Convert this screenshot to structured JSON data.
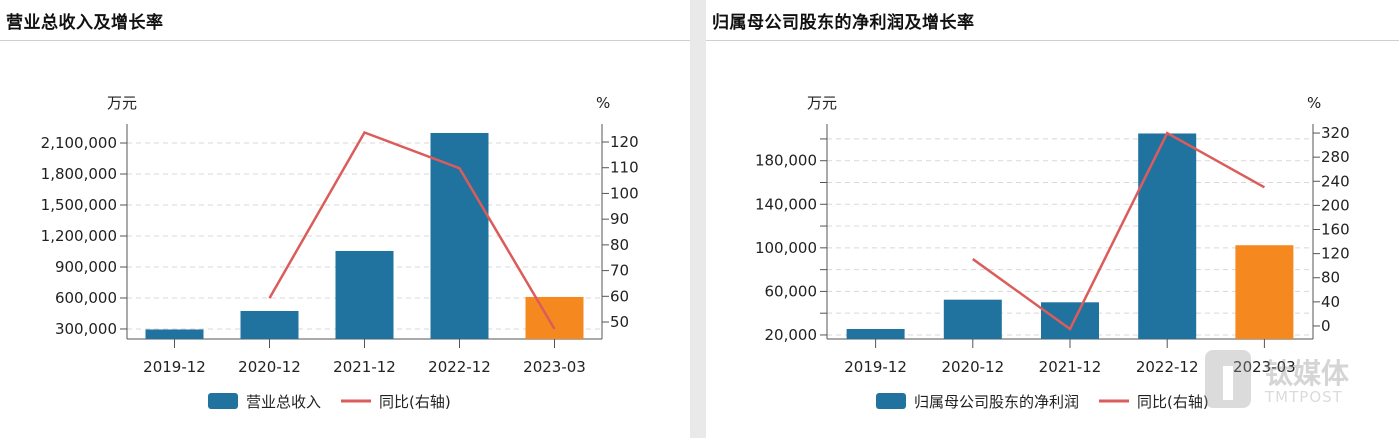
{
  "colors": {
    "bar": "#21739f",
    "bar_highlight": "#f5891f",
    "line": "#dc5b5b",
    "grid": "#d8d8d8",
    "axis": "#555555"
  },
  "watermark": {
    "cn": "钛媒体",
    "en": "TMTPOST"
  },
  "chart_data": [
    {
      "type": "bar+line",
      "title": "营业总收入及增长率",
      "categories": [
        "2019-12",
        "2020-12",
        "2021-12",
        "2022-12",
        "2023-03"
      ],
      "left_axis": {
        "unit": "万元",
        "range": [
          203000,
          2284000
        ],
        "ticks": [
          300000,
          600000,
          900000,
          1200000,
          1500000,
          1800000,
          2100000
        ],
        "tick_labels": [
          "300,000",
          "600,000",
          "900,000",
          "1,200,000",
          "1,500,000",
          "1,800,000",
          "2,100,000"
        ],
        "grid_ticks": [
          300000,
          600000,
          900000,
          1200000,
          1500000,
          1800000,
          2100000
        ]
      },
      "right_axis": {
        "unit": "%",
        "range": [
          43.4,
          127
        ],
        "ticks": [
          50,
          60,
          70,
          80,
          90,
          100,
          110,
          120
        ],
        "tick_labels": [
          "50",
          "60",
          "70",
          "80",
          "90",
          "100",
          "110",
          "120"
        ]
      },
      "series": [
        {
          "name": "营业总收入",
          "kind": "bar",
          "axis": "left",
          "values": [
            295000,
            474000,
            1055000,
            2197000,
            610000
          ],
          "highlight_index": 4
        },
        {
          "name": "同比(右轴)",
          "kind": "line",
          "axis": "right",
          "values": [
            null,
            59.3,
            123.7,
            109.8,
            47.3
          ]
        }
      ],
      "grid": true,
      "legend_position": "bottom"
    },
    {
      "type": "bar+line",
      "title": "归属母公司股东的净利润及增长率",
      "categories": [
        "2019-12",
        "2020-12",
        "2021-12",
        "2022-12",
        "2023-03"
      ],
      "left_axis": {
        "unit": "万元",
        "range": [
          16300,
          213700
        ],
        "ticks": [
          20000,
          40000,
          60000,
          80000,
          100000,
          120000,
          140000,
          160000,
          180000,
          200000
        ],
        "tick_labels": [
          "20,000",
          "",
          "60,000",
          "",
          "100,000",
          "",
          "140,000",
          "",
          "180,000",
          ""
        ],
        "grid_ticks": [
          20000,
          40000,
          60000,
          80000,
          100000,
          120000,
          140000,
          160000,
          180000,
          200000
        ]
      },
      "right_axis": {
        "unit": "%",
        "range": [
          -21.6,
          335
        ],
        "ticks": [
          0,
          40,
          80,
          120,
          160,
          200,
          240,
          280,
          320
        ],
        "tick_labels": [
          "0",
          "40",
          "80",
          "120",
          "160",
          "200",
          "240",
          "280",
          "320"
        ]
      },
      "series": [
        {
          "name": "归属母公司股东的净利润",
          "kind": "bar",
          "axis": "left",
          "values": [
            25500,
            52400,
            50000,
            205000,
            102400
          ],
          "highlight_index": 4
        },
        {
          "name": "同比(右轴)",
          "kind": "line",
          "axis": "right",
          "values": [
            null,
            111,
            -5,
            320,
            230
          ]
        }
      ],
      "grid": true,
      "legend_position": "bottom"
    }
  ]
}
